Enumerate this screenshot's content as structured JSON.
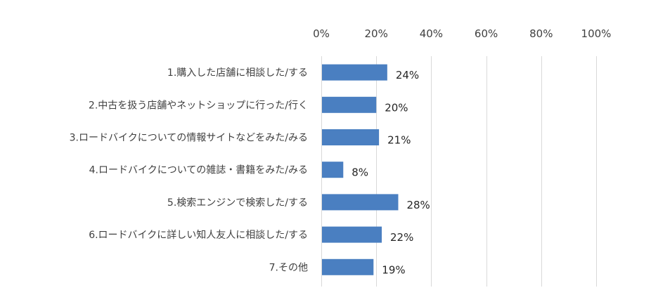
{
  "colors": {
    "bar": "#4a7fc1",
    "grid": "#d9d9d9",
    "text": "#404040"
  },
  "chart_data": {
    "type": "bar",
    "orientation": "horizontal",
    "categories": [
      "1.購入した店舗に相談した/する",
      "2.中古を扱う店舗やネットショップに行った/行く",
      "3.ロードバイクについての情報サイトなどをみた/みる",
      "4.ロードバイクについての雑誌・書籍をみた/みる",
      "5.検索エンジンで検索した/する",
      "6.ロードバイクに詳しい知人友人に相談した/する",
      "7.その他"
    ],
    "values": [
      24,
      20,
      21,
      8,
      28,
      22,
      19
    ],
    "data_labels": [
      "24%",
      "20%",
      "21%",
      "8%",
      "28%",
      "22%",
      "19%"
    ],
    "xlim": [
      0,
      100
    ],
    "x_ticks": [
      0,
      20,
      40,
      60,
      80,
      100
    ],
    "x_tick_labels": [
      "0%",
      "20%",
      "40%",
      "60%",
      "80%",
      "100%"
    ],
    "axis_position": "top",
    "grid": true,
    "legend": "none"
  }
}
